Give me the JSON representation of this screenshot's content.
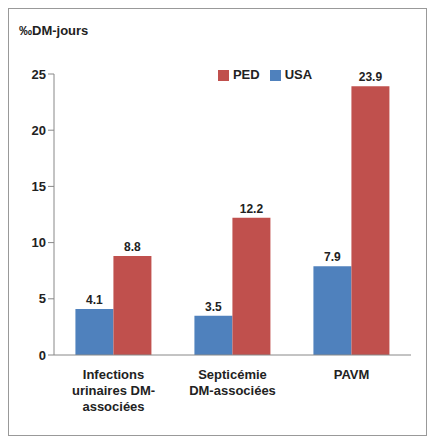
{
  "chart_data": {
    "type": "bar",
    "y_label": "‰DM-jours",
    "categories": [
      "Infections urinaires DM-associées",
      "Septicémie DM-associées",
      "PAVM"
    ],
    "series": [
      {
        "name": "USA",
        "color": "#4f81bd",
        "values": [
          4.1,
          3.5,
          7.9
        ]
      },
      {
        "name": "PED",
        "color": "#c0504d",
        "values": [
          8.8,
          12.2,
          23.9
        ]
      }
    ],
    "ylim": [
      0,
      25
    ],
    "yticks": [
      0,
      5,
      10,
      15,
      20,
      25
    ],
    "grid": false,
    "legend": "top",
    "data_labels": true
  }
}
